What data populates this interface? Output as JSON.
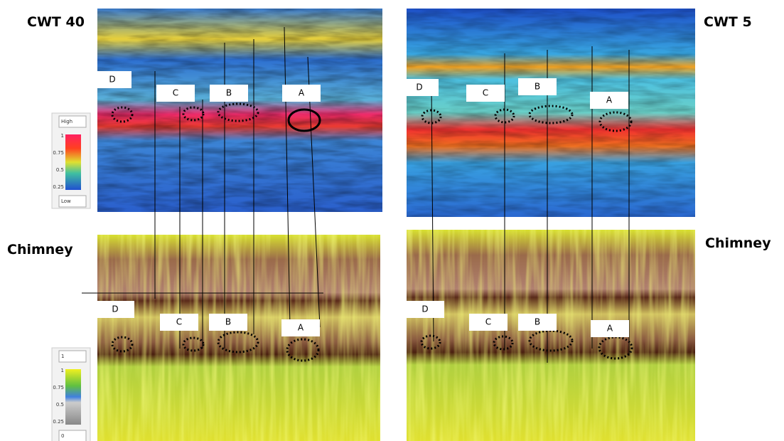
{
  "titles": {
    "cwt40": "CWT 40",
    "cwt5": "CWT 5",
    "chimney_left": "Chimney",
    "chimney_right": "Chimney"
  },
  "panels": [
    {
      "labels": [
        "D",
        "C",
        "B",
        "A"
      ]
    },
    {
      "labels": [
        "D",
        "C",
        "B",
        "A"
      ]
    },
    {
      "labels": [
        "D",
        "C",
        "B",
        "A"
      ]
    },
    {
      "labels": [
        "D",
        "C",
        "B",
        "A"
      ]
    }
  ],
  "colorbars": [
    {
      "top": "High",
      "ticks": [
        "1",
        "0.75",
        "0.5",
        "0.25"
      ],
      "bottom": "Low"
    },
    {
      "top": "1",
      "ticks": [
        "1",
        "0.75",
        "0.5",
        "0.25"
      ],
      "bottom": "0"
    }
  ]
}
